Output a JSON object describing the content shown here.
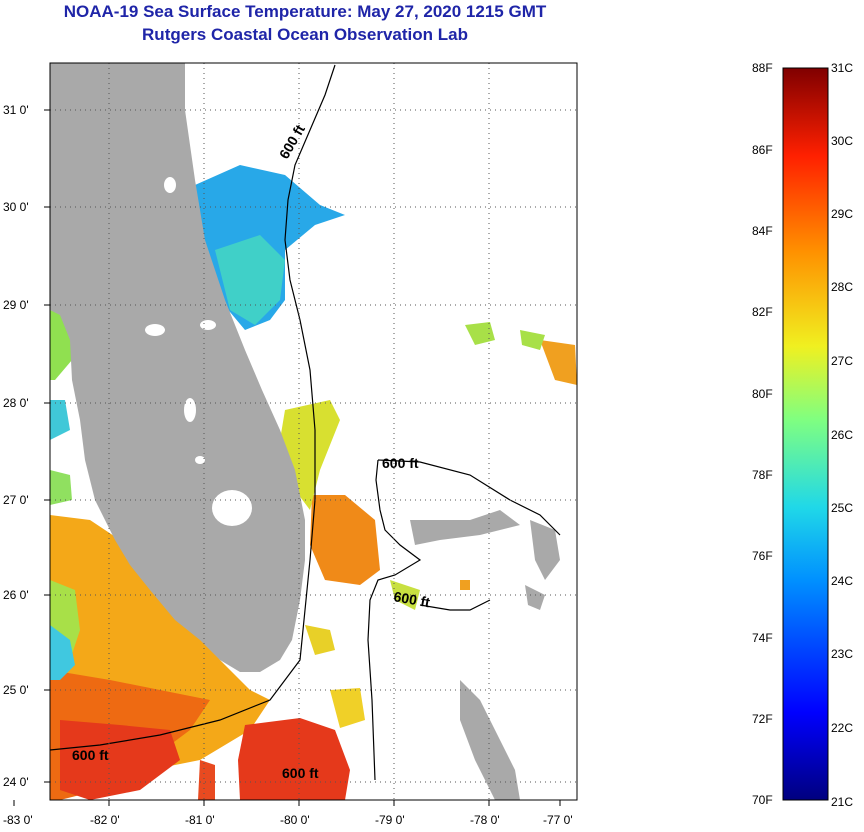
{
  "header": {
    "title": "NOAA-19 Sea Surface Temperature:  May 27, 2020 1215 GMT",
    "subtitle": "Rutgers Coastal Ocean Observation Lab"
  },
  "map": {
    "lon_labels": [
      "-83 0'",
      "-82 0'",
      "-81 0'",
      "-80 0'",
      "-79 0'",
      "-78 0'",
      "-77 0'"
    ],
    "lat_labels": [
      "31 0'",
      "30 0'",
      "29 0'",
      "28 0'",
      "27 0'",
      "26 0'",
      "25 0'",
      "24 0'"
    ],
    "contour_labels": [
      "600 ft",
      "600 ft",
      "600 ft",
      "600 ft",
      "600 ft"
    ]
  },
  "colorbar": {
    "fahrenheit_labels": [
      "88F",
      "86F",
      "84F",
      "82F",
      "80F",
      "78F",
      "76F",
      "74F",
      "72F",
      "70F"
    ],
    "celsius_labels": [
      "31C",
      "30C",
      "29C",
      "28C",
      "27C",
      "26C",
      "25C",
      "24C",
      "23C",
      "22C",
      "21C"
    ],
    "colors": {
      "land": "#a9a9a9",
      "title": "#1f25a8",
      "warm": "#e5391b",
      "cool": "#2aa2e8"
    }
  }
}
